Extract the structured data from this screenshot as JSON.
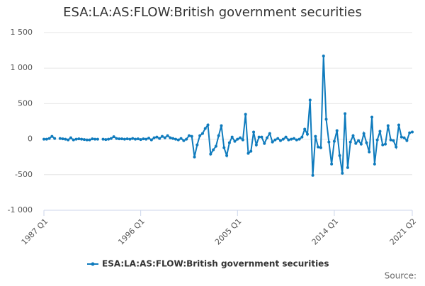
{
  "chart_data": {
    "type": "line",
    "title": "ESA:LA:AS:FLOW:British government securities",
    "source": "Source:",
    "categories": [
      "1987 Q1",
      null,
      null,
      null,
      null,
      null,
      null,
      null,
      null,
      null,
      null,
      null,
      null,
      null,
      null,
      null,
      null,
      null,
      null,
      null,
      null,
      null,
      null,
      null,
      null,
      null,
      null,
      null,
      null,
      null,
      null,
      null,
      null,
      null,
      null,
      null,
      "1996 Q1",
      null,
      null,
      null,
      null,
      null,
      null,
      null,
      null,
      null,
      null,
      null,
      null,
      null,
      null,
      null,
      null,
      null,
      null,
      null,
      null,
      null,
      null,
      null,
      null,
      null,
      null,
      null,
      null,
      null,
      null,
      null,
      null,
      null,
      null,
      null,
      "2005 Q1",
      null,
      null,
      null,
      null,
      null,
      null,
      null,
      null,
      null,
      null,
      null,
      null,
      null,
      null,
      null,
      null,
      null,
      null,
      null,
      null,
      null,
      null,
      null,
      null,
      null,
      null,
      null,
      null,
      null,
      null,
      null,
      null,
      null,
      null,
      null,
      "2014 Q1",
      null,
      null,
      null,
      null,
      null,
      null,
      null,
      null,
      null,
      null,
      null,
      null,
      null,
      null,
      null,
      null,
      null,
      null,
      null,
      null,
      null,
      null,
      null,
      null,
      null,
      null,
      null,
      null,
      "2021 Q2"
    ],
    "series": [
      {
        "name": "ESA:LA:AS:FLOW:British government securities",
        "color": "#0f7bbd",
        "values": [
          0,
          0,
          10,
          40,
          10,
          null,
          10,
          5,
          0,
          -10,
          20,
          -10,
          0,
          5,
          0,
          -5,
          -10,
          -10,
          5,
          0,
          0,
          null,
          0,
          -5,
          0,
          10,
          35,
          10,
          5,
          5,
          0,
          5,
          0,
          10,
          0,
          5,
          -5,
          5,
          0,
          15,
          -10,
          20,
          30,
          10,
          40,
          20,
          50,
          20,
          10,
          0,
          -10,
          10,
          -20,
          0,
          50,
          40,
          -250,
          -80,
          50,
          80,
          150,
          200,
          -210,
          -150,
          -100,
          50,
          190,
          -120,
          -230,
          -50,
          30,
          -30,
          0,
          20,
          -10,
          350,
          -200,
          -170,
          100,
          -80,
          30,
          30,
          -60,
          20,
          80,
          -40,
          -10,
          10,
          -20,
          0,
          30,
          -10,
          0,
          10,
          -10,
          0,
          30,
          140,
          70,
          550,
          -510,
          40,
          -110,
          -120,
          1170,
          280,
          -40,
          -350,
          -30,
          120,
          -230,
          -480,
          360,
          -400,
          -40,
          50,
          -60,
          -20,
          -70,
          80,
          -50,
          -180,
          310,
          -350,
          -10,
          110,
          -80,
          -70,
          190,
          -10,
          -20,
          -110,
          200,
          30,
          20,
          -20,
          90,
          100
        ]
      }
    ],
    "ylim": [
      -1000,
      1500
    ],
    "yticks": [
      {
        "value": 1500,
        "label": "1 500"
      },
      {
        "value": 1000,
        "label": "1 000"
      },
      500,
      0,
      -500,
      {
        "value": -1000,
        "label": "-1 000"
      }
    ],
    "grid": true
  }
}
